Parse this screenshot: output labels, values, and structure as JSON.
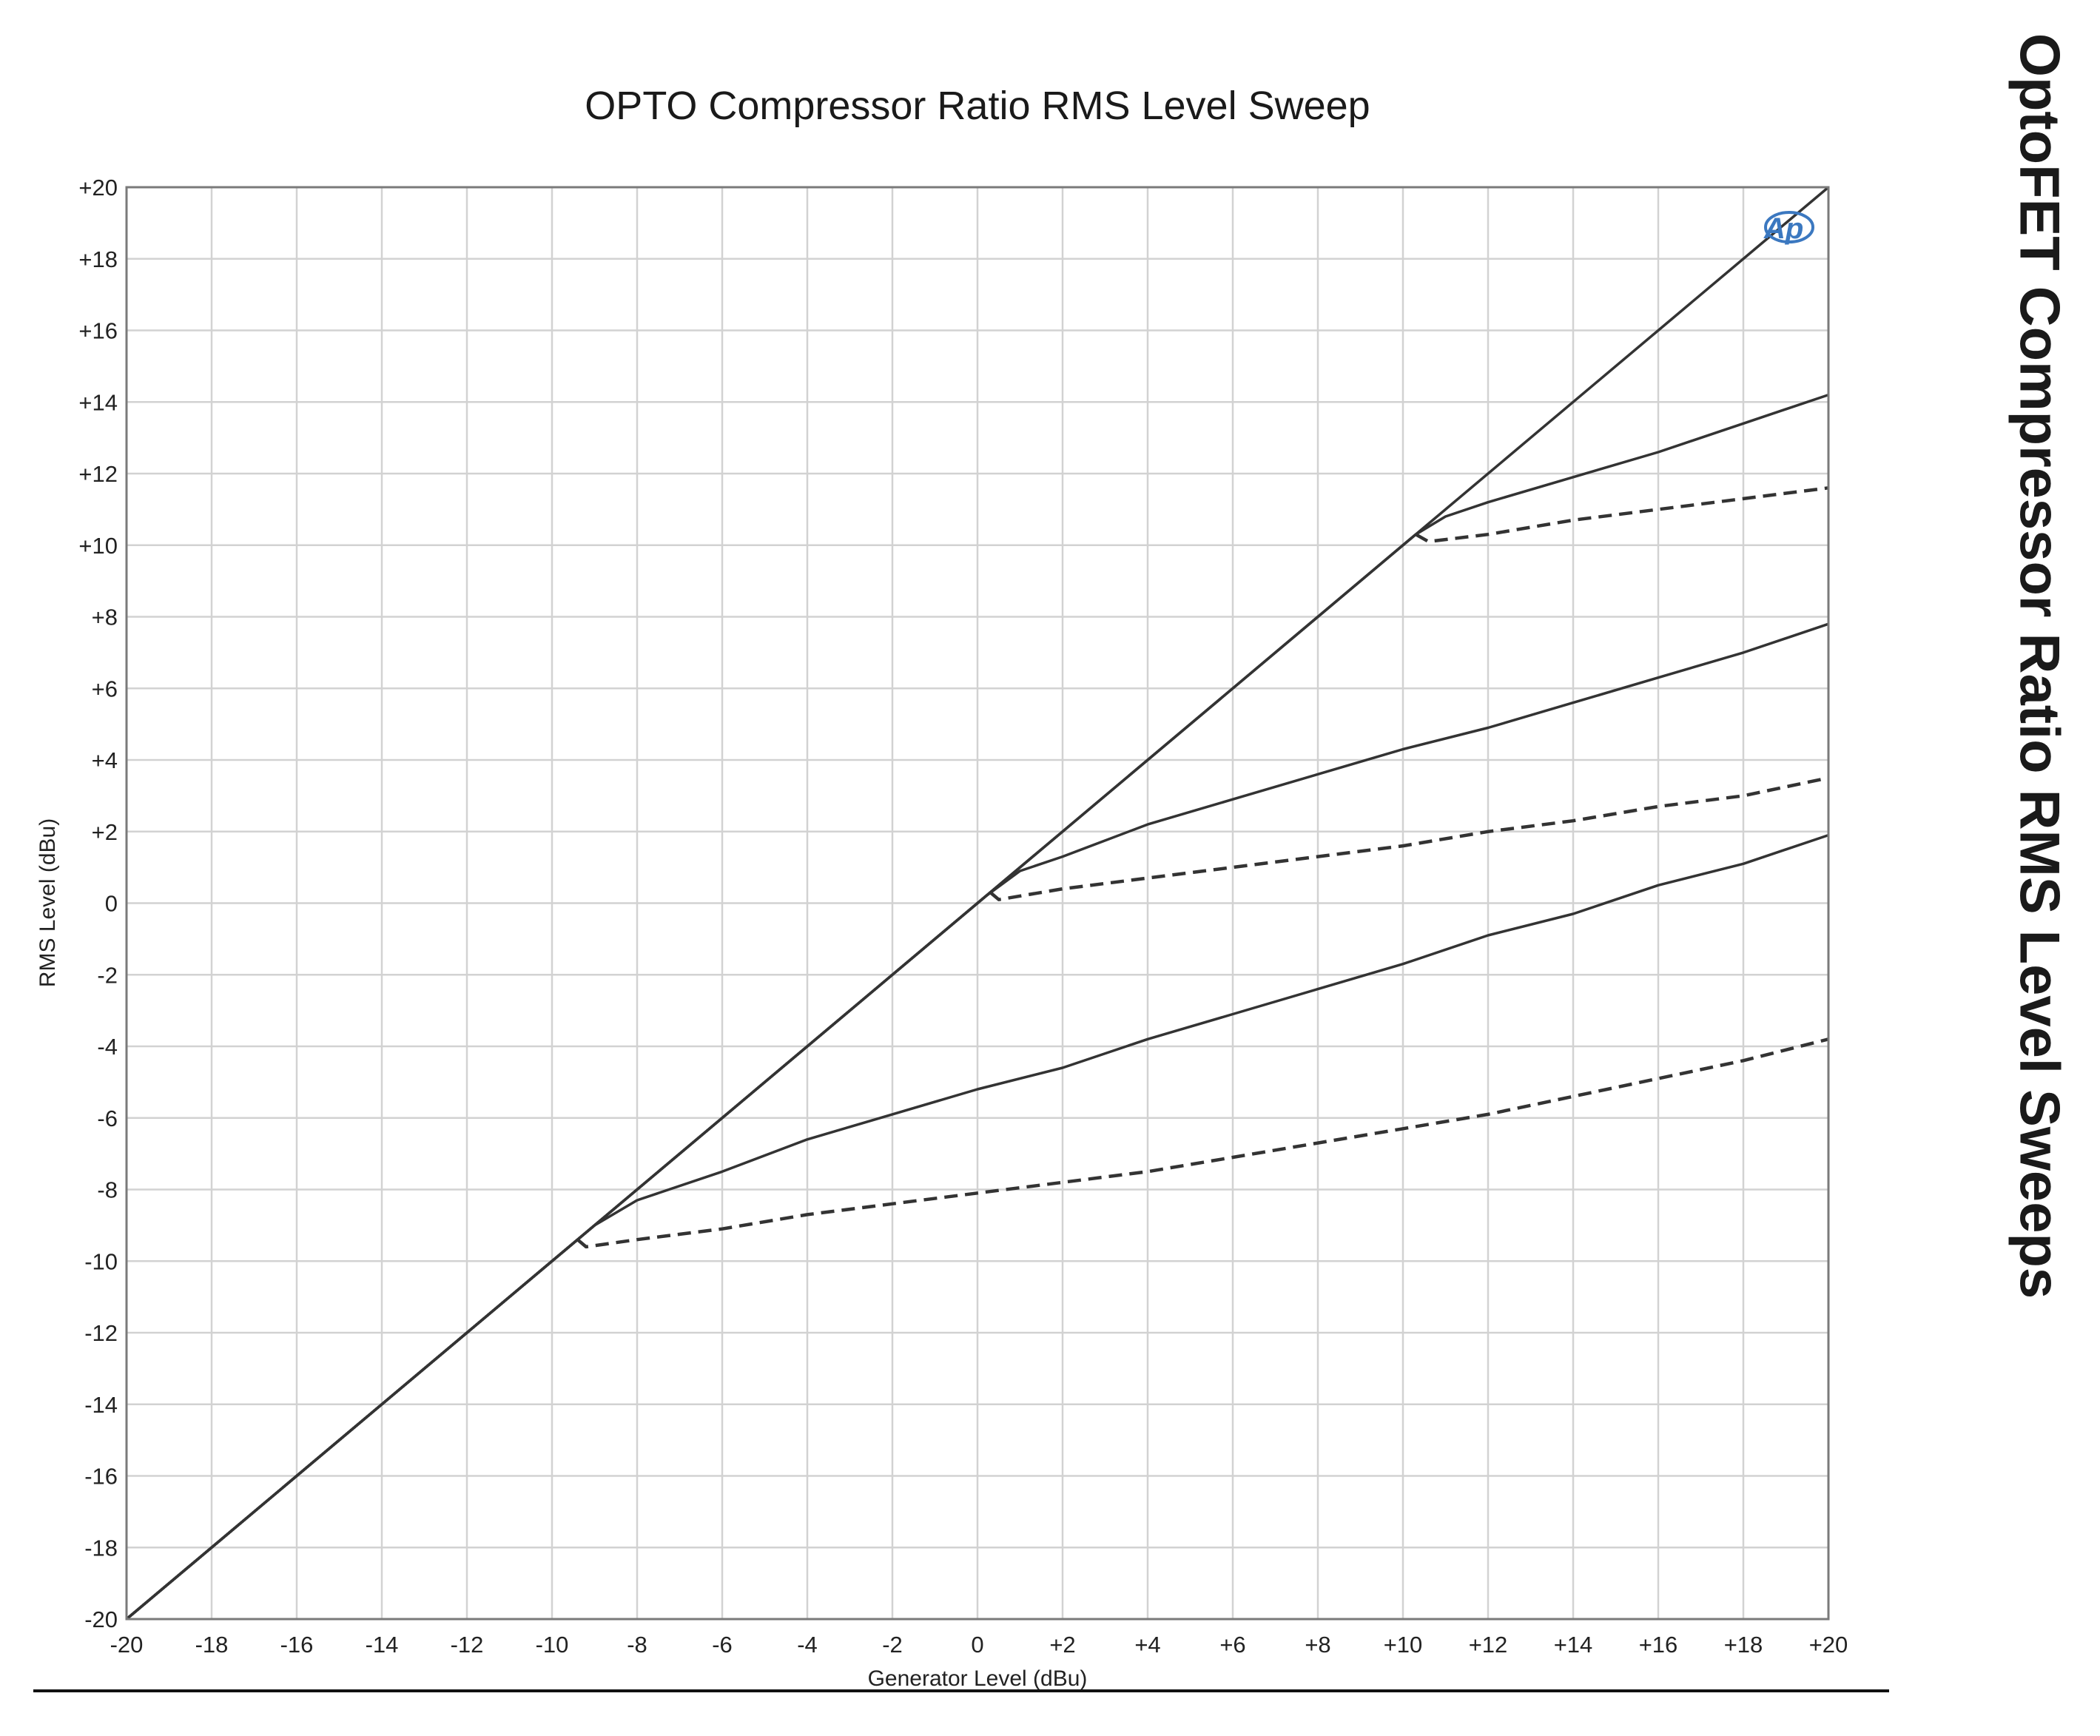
{
  "title": "OPTO Compressor Ratio RMS Level Sweep",
  "side_title": "OptoFET Compressor Ratio RMS Level Sweeps",
  "logo_text": "Ap",
  "colors": {
    "line": "#333333",
    "grid": "#d2d2d2",
    "axis": "#7a7a7a",
    "logo": "#3b78c0"
  },
  "chart_data": {
    "type": "line",
    "title": "OPTO Compressor Ratio RMS Level Sweep",
    "xlabel": "Generator Level (dBu)",
    "ylabel": "RMS Level (dBu)",
    "xlim": [
      -20,
      20
    ],
    "ylim": [
      -20,
      20
    ],
    "grid": true,
    "xticks": [
      "-20",
      "-18",
      "-16",
      "-14",
      "-12",
      "-10",
      "-8",
      "-6",
      "-4",
      "-2",
      "0",
      "+2",
      "+4",
      "+6",
      "+8",
      "+10",
      "+12",
      "+14",
      "+16",
      "+18",
      "+20"
    ],
    "yticks": [
      "+20",
      "+18",
      "+16",
      "+14",
      "+12",
      "+10",
      "+8",
      "+6",
      "+4",
      "+2",
      "0",
      "-2",
      "-4",
      "-6",
      "-8",
      "-10",
      "-12",
      "-14",
      "-16",
      "-18",
      "-20"
    ],
    "series": [
      {
        "style": "solid",
        "points": [
          [
            -20,
            -20
          ],
          [
            20,
            20
          ]
        ]
      },
      {
        "style": "solid",
        "points": [
          [
            -20,
            -20
          ],
          [
            10.3,
            10.3
          ],
          [
            11,
            10.8
          ],
          [
            12,
            11.2
          ],
          [
            14,
            11.9
          ],
          [
            16,
            12.6
          ],
          [
            18,
            13.4
          ],
          [
            20,
            14.2
          ]
        ]
      },
      {
        "style": "dashed",
        "points": [
          [
            -20,
            -20
          ],
          [
            10.3,
            10.3
          ],
          [
            10.6,
            10.1
          ],
          [
            12,
            10.3
          ],
          [
            14,
            10.7
          ],
          [
            16,
            11.0
          ],
          [
            18,
            11.3
          ],
          [
            20,
            11.6
          ]
        ]
      },
      {
        "style": "solid",
        "points": [
          [
            -20,
            -20
          ],
          [
            0.2,
            0.2
          ],
          [
            1,
            0.9
          ],
          [
            2,
            1.3
          ],
          [
            4,
            2.2
          ],
          [
            6,
            2.9
          ],
          [
            8,
            3.6
          ],
          [
            10,
            4.3
          ],
          [
            12,
            4.9
          ],
          [
            14,
            5.6
          ],
          [
            16,
            6.3
          ],
          [
            18,
            7.0
          ],
          [
            20,
            7.8
          ]
        ]
      },
      {
        "style": "dashed",
        "points": [
          [
            -20,
            -20
          ],
          [
            0.3,
            0.3
          ],
          [
            0.5,
            0.1
          ],
          [
            2,
            0.4
          ],
          [
            4,
            0.7
          ],
          [
            6,
            1.0
          ],
          [
            8,
            1.3
          ],
          [
            10,
            1.6
          ],
          [
            12,
            2.0
          ],
          [
            14,
            2.3
          ],
          [
            16,
            2.7
          ],
          [
            18,
            3.0
          ],
          [
            20,
            3.5
          ]
        ]
      },
      {
        "style": "solid",
        "points": [
          [
            -20,
            -20
          ],
          [
            -9,
            -9
          ],
          [
            -8,
            -8.3
          ],
          [
            -6,
            -7.5
          ],
          [
            -4,
            -6.6
          ],
          [
            -2,
            -5.9
          ],
          [
            0,
            -5.2
          ],
          [
            2,
            -4.6
          ],
          [
            4,
            -3.8
          ],
          [
            6,
            -3.1
          ],
          [
            8,
            -2.4
          ],
          [
            10,
            -1.7
          ],
          [
            12,
            -0.9
          ],
          [
            14,
            -0.3
          ],
          [
            16,
            0.5
          ],
          [
            18,
            1.1
          ],
          [
            20,
            1.9
          ]
        ]
      },
      {
        "style": "dashed",
        "points": [
          [
            -20,
            -20
          ],
          [
            -9.4,
            -9.4
          ],
          [
            -9.2,
            -9.6
          ],
          [
            -8,
            -9.4
          ],
          [
            -6,
            -9.1
          ],
          [
            -4,
            -8.7
          ],
          [
            -2,
            -8.4
          ],
          [
            0,
            -8.1
          ],
          [
            2,
            -7.8
          ],
          [
            4,
            -7.5
          ],
          [
            6,
            -7.1
          ],
          [
            8,
            -6.7
          ],
          [
            10,
            -6.3
          ],
          [
            12,
            -5.9
          ],
          [
            14,
            -5.4
          ],
          [
            16,
            -4.9
          ],
          [
            18,
            -4.4
          ],
          [
            20,
            -3.8
          ]
        ]
      }
    ]
  }
}
